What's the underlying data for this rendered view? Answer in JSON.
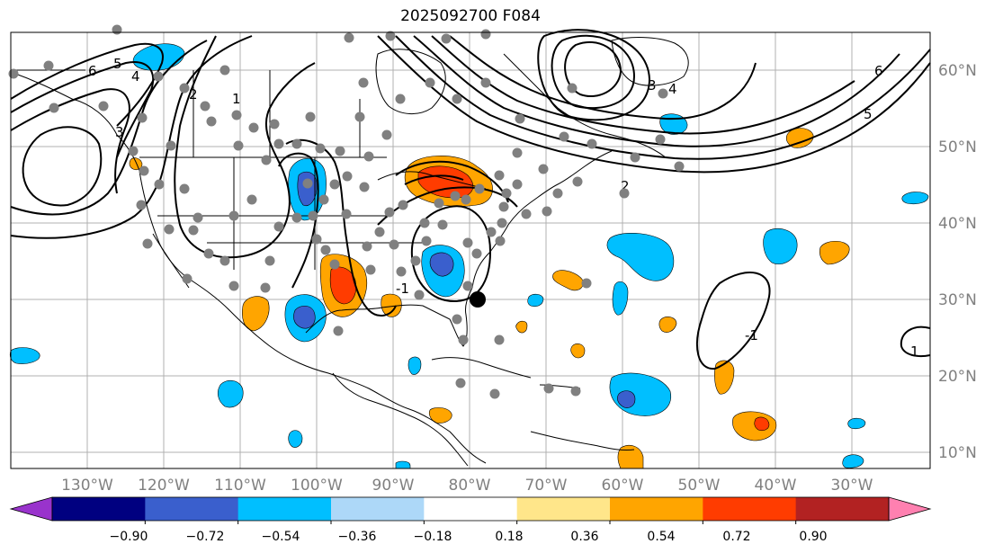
{
  "title": "2025092700 F084",
  "longitude_labels": [
    "130°W",
    "120°W",
    "110°W",
    "100°W",
    "90°W",
    "80°W",
    "70°W",
    "60°W",
    "50°W",
    "40°W",
    "30°W"
  ],
  "latitude_labels": [
    "60°N",
    "50°N",
    "40°N",
    "30°N",
    "20°N",
    "10°N"
  ],
  "contour_labels": [
    "6",
    "5",
    "4",
    "3",
    "2",
    "1",
    "-1",
    "2",
    "3",
    "4",
    "5",
    "6",
    "-1",
    "1"
  ],
  "colorbar": {
    "tick_labels": [
      "−0.90",
      "−0.72",
      "−0.54",
      "−0.36",
      "−0.18",
      "0.18",
      "0.36",
      "0.54",
      "0.72",
      "0.90"
    ],
    "colors": [
      "#9933cc",
      "#000080",
      "#3a5fcd",
      "#00bfff",
      "#add8f8",
      "#ffffff",
      "#ffe68a",
      "#ffa500",
      "#ff3c00",
      "#b22222",
      "#ff80b0"
    ]
  },
  "map_colors": {
    "stations": "#808080",
    "marker": "#000000",
    "land_outline": "#000000",
    "grid": "#b0b0b0"
  }
}
